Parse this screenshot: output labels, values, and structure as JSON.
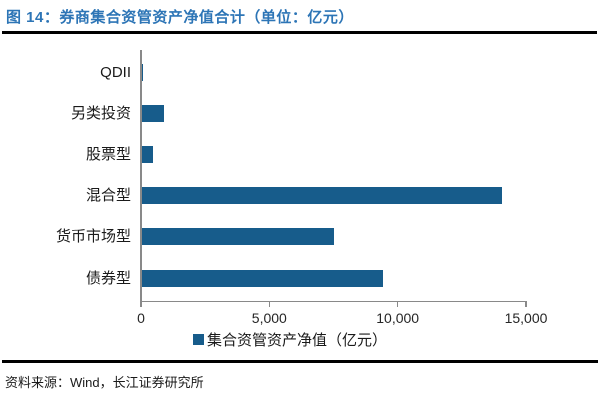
{
  "figure": {
    "title": "图 14：券商集合资管资产净值合计（单位：亿元）",
    "source": "资料来源：Wind，长江证券研究所"
  },
  "colors": {
    "bar": "#175C8B",
    "title_text": "#2D75B6",
    "axis": "#898989",
    "rule": "#000000"
  },
  "chart_data": {
    "type": "bar",
    "orientation": "horizontal",
    "title": "券商集合资管资产净值合计（单位：亿元）",
    "categories": [
      "QDII",
      "另类投资",
      "股票型",
      "混合型",
      "货币市场型",
      "债券型"
    ],
    "values": [
      70,
      860,
      430,
      14050,
      7500,
      9400
    ],
    "xlim": [
      0,
      15000
    ],
    "xticks": [
      0,
      5000,
      10000,
      15000
    ],
    "xtick_labels": [
      "0",
      "5,000",
      "10,000",
      "15,000"
    ],
    "legend_label": "集合资管资产净值（亿元）",
    "legend_position": "bottom-center",
    "grid": false
  }
}
